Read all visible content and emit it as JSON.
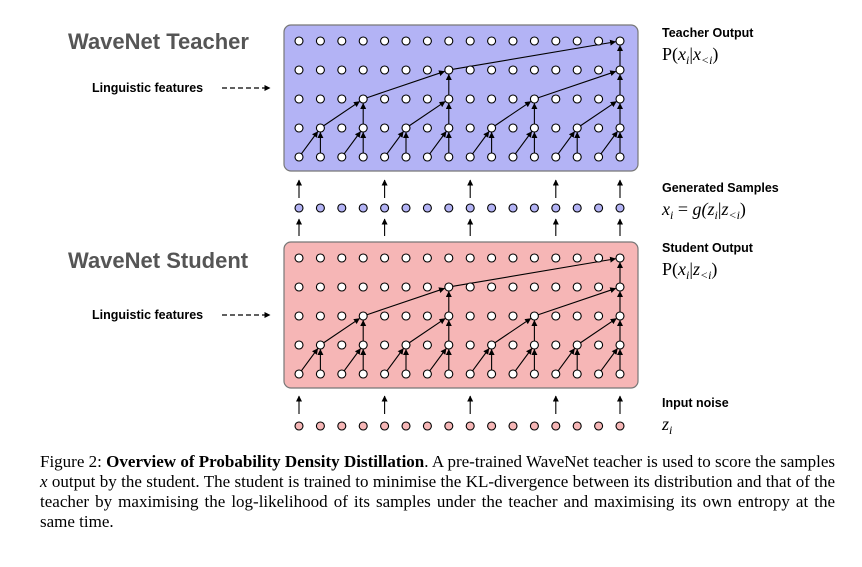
{
  "teacher": {
    "title": "WaveNet Teacher",
    "linguistic_label": "Linguistic features",
    "output_label": "Teacher Output",
    "output_formula": {
      "p": "P(",
      "x": "x",
      "i": "i",
      "bar": "|",
      "x2": "x",
      "lt": "<i",
      "close": ")"
    }
  },
  "generated": {
    "label": "Generated Samples",
    "formula": {
      "x": "x",
      "i": "i",
      "eq": " = ",
      "g": "g(",
      "z": "z",
      "i2": "i",
      "bar": "|",
      "z2": "z",
      "lt": "<i",
      "close": ")"
    }
  },
  "student": {
    "title": "WaveNet Student",
    "linguistic_label": "Linguistic features",
    "output_label": "Student Output",
    "output_formula": {
      "p": "P(",
      "x": "x",
      "i": "i",
      "bar": "|",
      "z": "z",
      "lt": "<i",
      "close": ")"
    }
  },
  "noise": {
    "label": "Input noise",
    "formula": {
      "z": "z",
      "i": "i"
    }
  },
  "colors": {
    "teacher_fill": "#b3b3f5",
    "student_fill": "#f6b6b6",
    "generated_dot": "#b3b3f5",
    "noise_dot": "#f6b6b6"
  },
  "caption": {
    "prefix": "Figure 2: ",
    "bold": "Overview of Probability Density Distillation",
    "text1": ". A pre-trained WaveNet teacher is used to score the samples ",
    "var": "x",
    "text2": " output by the student. The student is trained to minimise the KL-divergence between its distribution and that of the teacher by maximising the log-likelihood of its samples under the teacher and maximising its own entropy at the same time."
  }
}
